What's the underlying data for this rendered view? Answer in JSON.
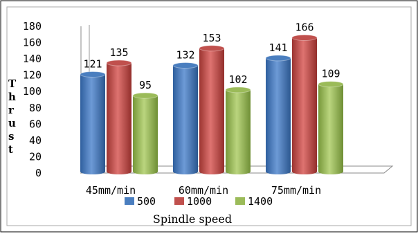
{
  "chart_data": {
    "type": "bar",
    "categories": [
      "45mm/min",
      "60mm/min",
      "75mm/min"
    ],
    "series": [
      {
        "name": "500",
        "values": [
          121,
          132,
          141
        ],
        "color": "#4a7ebf"
      },
      {
        "name": "1000",
        "values": [
          135,
          153,
          166
        ],
        "color": "#c0504d"
      },
      {
        "name": "1400",
        "values": [
          95,
          102,
          109
        ],
        "color": "#9bbb59"
      }
    ],
    "yticks": [
      "0",
      "20",
      "40",
      "60",
      "80",
      "100",
      "120",
      "140",
      "160",
      "180"
    ],
    "ylim": [
      0,
      180
    ],
    "ylabel": "Thrust",
    "xlabel": "Spindle speed",
    "legend_position": "bottom",
    "grid": false,
    "style": "3d-cylinder"
  }
}
